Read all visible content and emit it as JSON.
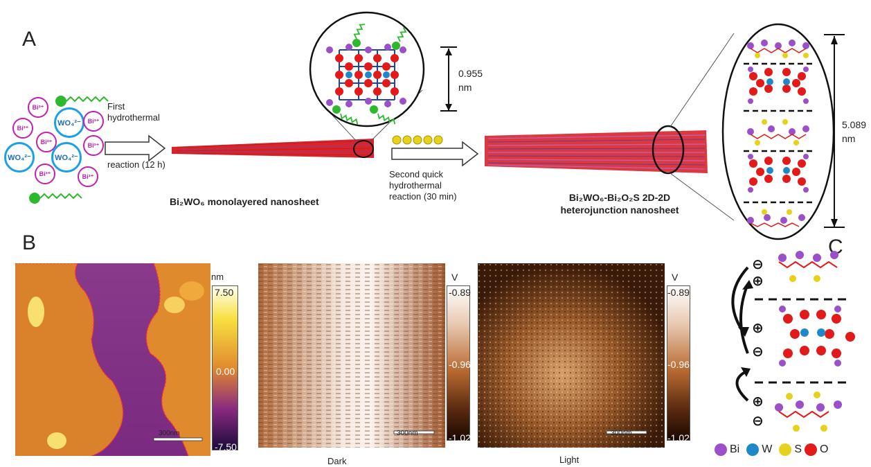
{
  "panelA": {
    "letter": "A",
    "ions": {
      "bi": "Bi³⁺",
      "wo4": "WO₄²⁻"
    },
    "step1": [
      "First",
      "hydrothermal",
      "reaction (12 h)"
    ],
    "monolayer_label": "Bi₂WO₆ monolayered nanosheet",
    "thickness1": "0.955\nnm",
    "step2": [
      "Second quick",
      "hydrothermal",
      "reaction (30 min)"
    ],
    "hetero_label": [
      "Bi₂WO₆-Bi₂O₂S 2D-2D",
      "heterojunction nanosheet"
    ],
    "thickness2": "5.089\nnm"
  },
  "panelB": {
    "letter": "B",
    "afm": {
      "unit": "nm",
      "max": "7.50",
      "mid": "0.00",
      "min": "-7.50",
      "scale": "300nm"
    },
    "kpfm_dark": {
      "unit": "V",
      "max": "-0.89",
      "mid": "-0.96",
      "min": "-1.02",
      "scale": "300nm",
      "caption": "Dark"
    },
    "kpfm_light": {
      "unit": "V",
      "max": "-0.89",
      "mid": "-0.96",
      "min": "-1.02",
      "scale": "300nm",
      "caption": "Light"
    }
  },
  "panelC": {
    "letter": "C",
    "legend": [
      "Bi",
      "W",
      "S",
      "O"
    ]
  },
  "colors": {
    "bi": "#9b4fc8",
    "w": "#1e88c8",
    "s": "#e6d21a",
    "o": "#e21a1a",
    "green": "#2eb82e"
  }
}
